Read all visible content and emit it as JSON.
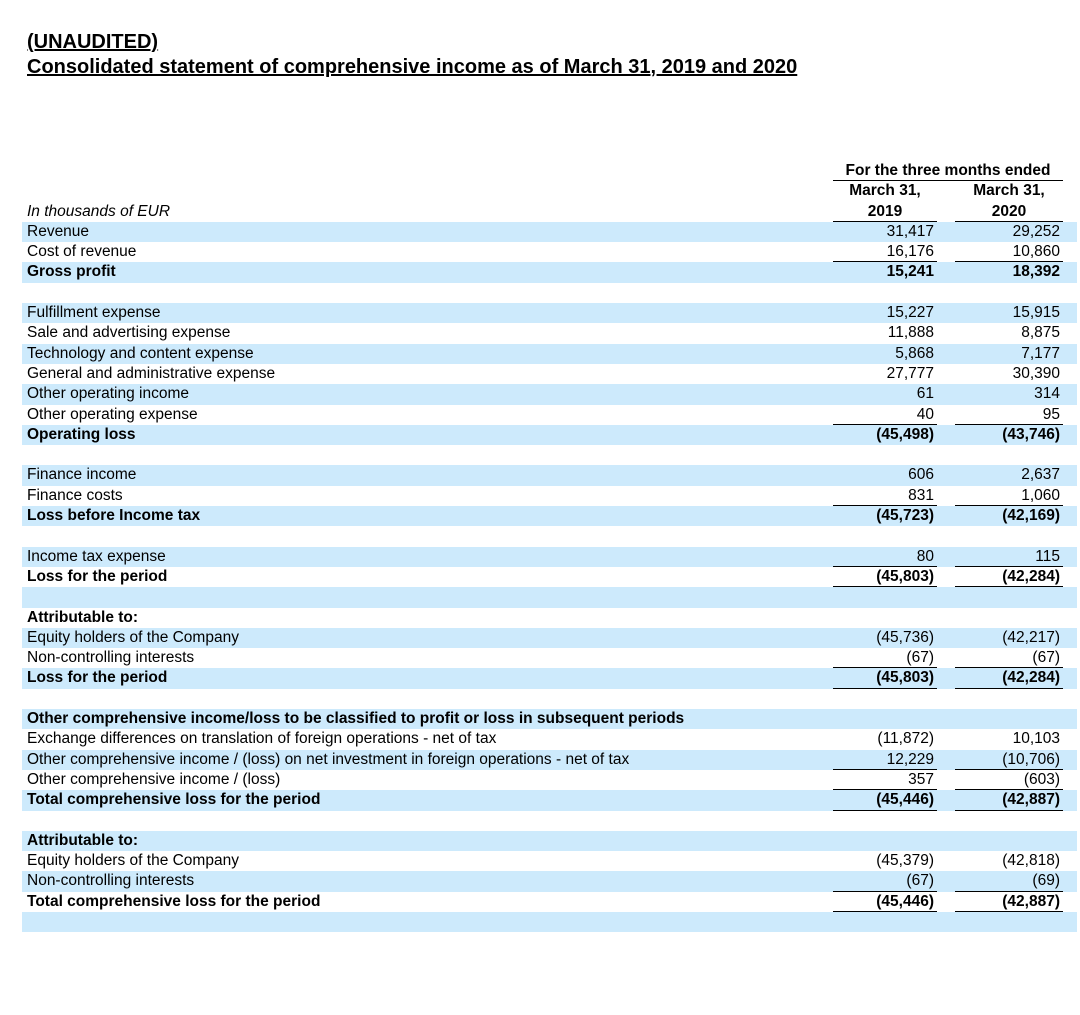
{
  "document": {
    "title_line1": "(UNAUDITED)",
    "title_line2": "Consolidated statement of comprehensive income as of March 31, 2019 and 2020"
  },
  "colors": {
    "row_highlight": "#cdeafc",
    "text": "#000000",
    "rule": "#000000"
  },
  "table": {
    "units_label": "In thousands of EUR",
    "period_header": "For the three months ended",
    "columns": [
      {
        "line1": "March 31,",
        "line2": "2019"
      },
      {
        "line1": "March 31,",
        "line2": "2020"
      }
    ],
    "rows": [
      {
        "label": "Revenue",
        "v2019": "31,417",
        "v2020": "29,252",
        "bold": false,
        "shaded": true,
        "rule_below": false
      },
      {
        "label": "Cost of revenue",
        "v2019": "16,176",
        "v2020": "10,860",
        "bold": false,
        "shaded": false,
        "rule_below": true
      },
      {
        "label": "Gross profit",
        "v2019": "15,241",
        "v2020": "18,392",
        "bold": true,
        "shaded": true,
        "rule_below": false
      },
      {
        "blank": true,
        "shaded": false
      },
      {
        "label": "Fulfillment expense",
        "v2019": "15,227",
        "v2020": "15,915",
        "bold": false,
        "shaded": true,
        "rule_below": false
      },
      {
        "label": "Sale and advertising expense",
        "v2019": "11,888",
        "v2020": "8,875",
        "bold": false,
        "shaded": false,
        "rule_below": false
      },
      {
        "label": "Technology and content expense",
        "v2019": "5,868",
        "v2020": "7,177",
        "bold": false,
        "shaded": true,
        "rule_below": false
      },
      {
        "label": "General and administrative expense",
        "v2019": "27,777",
        "v2020": "30,390",
        "bold": false,
        "shaded": false,
        "rule_below": false
      },
      {
        "label": "Other operating income",
        "v2019": "61",
        "v2020": "314",
        "bold": false,
        "shaded": true,
        "rule_below": false
      },
      {
        "label": "Other operating expense",
        "v2019": "40",
        "v2020": "95",
        "bold": false,
        "shaded": false,
        "rule_below": true
      },
      {
        "label": "Operating loss",
        "v2019": "(45,498)",
        "v2020": "(43,746)",
        "bold": true,
        "shaded": true,
        "rule_below": false
      },
      {
        "blank": true,
        "shaded": false
      },
      {
        "label": "Finance income",
        "v2019": "606",
        "v2020": "2,637",
        "bold": false,
        "shaded": true,
        "rule_below": false
      },
      {
        "label": "Finance costs",
        "v2019": "831",
        "v2020": "1,060",
        "bold": false,
        "shaded": false,
        "rule_below": true
      },
      {
        "label": "Loss before Income tax",
        "v2019": "(45,723)",
        "v2020": "(42,169)",
        "bold": true,
        "shaded": true,
        "rule_below": false
      },
      {
        "blank": true,
        "shaded": false
      },
      {
        "label": "Income tax expense",
        "v2019": "80",
        "v2020": "115",
        "bold": false,
        "shaded": true,
        "rule_below": true
      },
      {
        "label": "Loss for the period",
        "v2019": "(45,803)",
        "v2020": "(42,284)",
        "bold": true,
        "shaded": false,
        "rule_below": true
      },
      {
        "blank": true,
        "shaded": true
      },
      {
        "label": "Attributable to:",
        "v2019": "",
        "v2020": "",
        "bold": true,
        "shaded": false,
        "rule_below": false
      },
      {
        "label": "Equity holders of the Company",
        "v2019": "(45,736)",
        "v2020": "(42,217)",
        "bold": false,
        "shaded": true,
        "rule_below": false
      },
      {
        "label": "Non-controlling interests",
        "v2019": "(67)",
        "v2020": "(67)",
        "bold": false,
        "shaded": false,
        "rule_below": true
      },
      {
        "label": "Loss for the period",
        "v2019": "(45,803)",
        "v2020": "(42,284)",
        "bold": true,
        "shaded": true,
        "rule_below": true
      },
      {
        "blank": true,
        "shaded": false
      },
      {
        "label": "Other comprehensive income/loss to be classified to profit or loss in subsequent periods",
        "v2019": "",
        "v2020": "",
        "bold": true,
        "shaded": true,
        "rule_below": false
      },
      {
        "label": "Exchange differences on translation of foreign operations - net of tax",
        "v2019": "(11,872)",
        "v2020": "10,103",
        "bold": false,
        "shaded": false,
        "rule_below": false
      },
      {
        "label": "Other comprehensive income / (loss) on net investment in foreign operations - net of tax",
        "v2019": "12,229",
        "v2020": "(10,706)",
        "bold": false,
        "shaded": true,
        "rule_below": true
      },
      {
        "label": "Other comprehensive income / (loss)",
        "v2019": "357",
        "v2020": "(603)",
        "bold": false,
        "shaded": false,
        "rule_below": true
      },
      {
        "label": "Total comprehensive loss for the period",
        "v2019": "(45,446)",
        "v2020": "(42,887)",
        "bold": true,
        "shaded": true,
        "rule_below": true
      },
      {
        "blank": true,
        "shaded": false
      },
      {
        "label": "Attributable to:",
        "v2019": "",
        "v2020": "",
        "bold": true,
        "shaded": true,
        "rule_below": false
      },
      {
        "label": "Equity holders of the Company",
        "v2019": "(45,379)",
        "v2020": "(42,818)",
        "bold": false,
        "shaded": false,
        "rule_below": false
      },
      {
        "label": "Non-controlling interests",
        "v2019": "(67)",
        "v2020": "(69)",
        "bold": false,
        "shaded": true,
        "rule_below": true
      },
      {
        "label": "Total comprehensive loss for the period",
        "v2019": "(45,446)",
        "v2020": "(42,887)",
        "bold": true,
        "shaded": false,
        "rule_below": true
      },
      {
        "blank": true,
        "shaded": true
      }
    ]
  }
}
